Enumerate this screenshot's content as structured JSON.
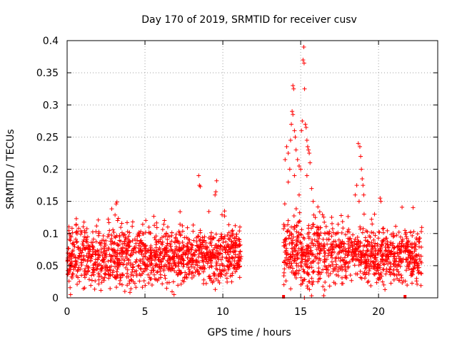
{
  "chart_data": {
    "type": "scatter",
    "title": "Day 170 of 2019, SRMTID for receiver cusv",
    "xlabel": "GPS time / hours",
    "ylabel": "SRMTID / TECUs",
    "xlim": [
      0,
      23.8
    ],
    "ylim": [
      0,
      0.4
    ],
    "xticks": [
      0,
      5,
      10,
      15,
      20
    ],
    "xtick_labels": [
      "0",
      "5",
      "10",
      "15",
      "20"
    ],
    "yticks": [
      0,
      0.05,
      0.1,
      0.15,
      0.2,
      0.25,
      0.3,
      0.35,
      0.4
    ],
    "ytick_labels": [
      "0",
      "0.05",
      "0.1",
      "0.15",
      "0.2",
      "0.25",
      "0.3",
      "0.35",
      "0.4"
    ],
    "grid": true,
    "marker": "+",
    "color": "#ff0000",
    "series": [
      {
        "name": "SRMTID",
        "segments": [
          {
            "x_start": 0.0,
            "x_end": 11.2,
            "baseline": 0.065,
            "spread": 0.04,
            "min": 0.005,
            "max": 0.15
          },
          {
            "x_start": 13.9,
            "x_end": 17.8,
            "baseline": 0.07,
            "spread": 0.045,
            "min": 0.0,
            "max": 0.15
          },
          {
            "x_start": 17.8,
            "x_end": 22.8,
            "baseline": 0.065,
            "spread": 0.035,
            "min": 0.0,
            "max": 0.15
          }
        ],
        "peaks": [
          {
            "x": 8.45,
            "y": 0.19
          },
          {
            "x": 8.5,
            "y": 0.175
          },
          {
            "x": 8.55,
            "y": 0.173
          },
          {
            "x": 9.6,
            "y": 0.182
          },
          {
            "x": 9.55,
            "y": 0.165
          },
          {
            "x": 9.5,
            "y": 0.16
          },
          {
            "x": 3.2,
            "y": 0.149
          },
          {
            "x": 3.15,
            "y": 0.146
          },
          {
            "x": 14.0,
            "y": 0.215
          },
          {
            "x": 14.1,
            "y": 0.235
          },
          {
            "x": 14.2,
            "y": 0.225
          },
          {
            "x": 14.3,
            "y": 0.2
          },
          {
            "x": 14.35,
            "y": 0.245
          },
          {
            "x": 14.4,
            "y": 0.27
          },
          {
            "x": 14.45,
            "y": 0.29
          },
          {
            "x": 14.5,
            "y": 0.285
          },
          {
            "x": 14.5,
            "y": 0.33
          },
          {
            "x": 14.55,
            "y": 0.325
          },
          {
            "x": 14.6,
            "y": 0.26
          },
          {
            "x": 14.65,
            "y": 0.25
          },
          {
            "x": 14.7,
            "y": 0.23
          },
          {
            "x": 14.8,
            "y": 0.215
          },
          {
            "x": 14.9,
            "y": 0.205
          },
          {
            "x": 15.0,
            "y": 0.2
          },
          {
            "x": 15.05,
            "y": 0.26
          },
          {
            "x": 15.1,
            "y": 0.275
          },
          {
            "x": 15.15,
            "y": 0.37
          },
          {
            "x": 15.2,
            "y": 0.39
          },
          {
            "x": 15.22,
            "y": 0.365
          },
          {
            "x": 15.25,
            "y": 0.325
          },
          {
            "x": 15.3,
            "y": 0.27
          },
          {
            "x": 15.35,
            "y": 0.265
          },
          {
            "x": 15.4,
            "y": 0.245
          },
          {
            "x": 15.45,
            "y": 0.235
          },
          {
            "x": 15.5,
            "y": 0.23
          },
          {
            "x": 15.55,
            "y": 0.225
          },
          {
            "x": 15.6,
            "y": 0.21
          },
          {
            "x": 15.7,
            "y": 0.17
          },
          {
            "x": 15.8,
            "y": 0.15
          },
          {
            "x": 14.2,
            "y": 0.18
          },
          {
            "x": 14.6,
            "y": 0.19
          },
          {
            "x": 14.9,
            "y": 0.16
          },
          {
            "x": 15.4,
            "y": 0.19
          },
          {
            "x": 18.6,
            "y": 0.175
          },
          {
            "x": 18.7,
            "y": 0.24
          },
          {
            "x": 18.8,
            "y": 0.235
          },
          {
            "x": 18.85,
            "y": 0.22
          },
          {
            "x": 18.9,
            "y": 0.2
          },
          {
            "x": 18.95,
            "y": 0.185
          },
          {
            "x": 19.0,
            "y": 0.175
          },
          {
            "x": 19.05,
            "y": 0.16
          },
          {
            "x": 18.5,
            "y": 0.16
          },
          {
            "x": 18.75,
            "y": 0.15
          },
          {
            "x": 20.1,
            "y": 0.155
          },
          {
            "x": 20.15,
            "y": 0.15
          }
        ],
        "bottom_markers": [
          {
            "x": 13.9,
            "y": 0.0
          },
          {
            "x": 21.7,
            "y": 0.0
          }
        ]
      }
    ]
  }
}
